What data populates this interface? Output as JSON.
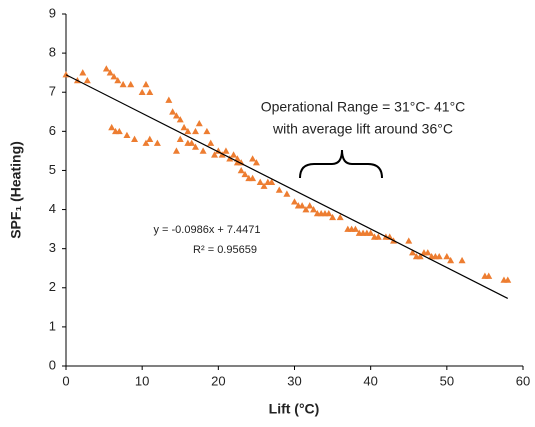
{
  "chart_data": {
    "type": "scatter",
    "x_label": "Lift (°C)",
    "y_label": "SPF₁ (Heating)",
    "annotations": [
      "Operational Range = 31°C- 41°C",
      "with average lift around 36°C"
    ],
    "equation": "y = -0.0986x + 7.4471",
    "r_squared": "R² = 0.95659",
    "color": "#ED7D31",
    "x": [
      0,
      1.5,
      2.2,
      2.8,
      5.3,
      5.8,
      6.3,
      6.8,
      7.5,
      8.5,
      10,
      10.5,
      11,
      13.5,
      14,
      14.5,
      15,
      15.5,
      16,
      17,
      17.5,
      18.5,
      19,
      20,
      21,
      22,
      22.5,
      23,
      24.5,
      25,
      6,
      6.5,
      7,
      8,
      9,
      10.5,
      11,
      12,
      14.5,
      15,
      16,
      16.5,
      17,
      18,
      19.5,
      20.5,
      21.5,
      22.5,
      23,
      23.5,
      24,
      24.5,
      25.5,
      26,
      26.5,
      27,
      28,
      29,
      30,
      30.5,
      31,
      31.5,
      32,
      32.5,
      33,
      33.5,
      34,
      34.5,
      35,
      36,
      37,
      37.5,
      38,
      38.5,
      39,
      39.5,
      40,
      40.5,
      41,
      42,
      42.5,
      43,
      45,
      45.5,
      46,
      46.5,
      47,
      47.5,
      48,
      48.5,
      49,
      50,
      50.5,
      52,
      55,
      55.5,
      57.5,
      58
    ],
    "values": [
      7.45,
      7.3,
      7.5,
      7.3,
      7.6,
      7.5,
      7.4,
      7.3,
      7.2,
      7.2,
      7.0,
      7.2,
      7.0,
      6.8,
      6.5,
      6.4,
      6.3,
      6.1,
      6.0,
      6.0,
      6.2,
      6.0,
      5.7,
      5.5,
      5.5,
      5.4,
      5.3,
      5.2,
      5.3,
      5.2,
      6.1,
      6.0,
      6.0,
      5.9,
      5.8,
      5.7,
      5.8,
      5.7,
      5.5,
      5.8,
      5.7,
      5.7,
      5.6,
      5.5,
      5.4,
      5.4,
      5.3,
      5.2,
      5.0,
      4.9,
      4.8,
      4.8,
      4.7,
      4.6,
      4.7,
      4.7,
      4.5,
      4.4,
      4.2,
      4.1,
      4.1,
      4.0,
      4.1,
      4.0,
      3.9,
      3.9,
      3.9,
      3.9,
      3.8,
      3.8,
      3.5,
      3.5,
      3.5,
      3.4,
      3.4,
      3.4,
      3.4,
      3.3,
      3.3,
      3.3,
      3.3,
      3.2,
      3.2,
      2.9,
      2.8,
      2.8,
      2.9,
      2.9,
      2.8,
      2.8,
      2.8,
      2.8,
      2.7,
      2.7,
      2.3,
      2.3,
      2.2,
      2.2
    ],
    "trendline": {
      "x": [
        0,
        58
      ],
      "y": [
        7.4471,
        1.7283
      ]
    },
    "xlim": [
      0,
      60
    ],
    "xticks": [
      0,
      10,
      20,
      30,
      40,
      50,
      60
    ],
    "ylim": [
      0,
      9
    ],
    "yticks": [
      0,
      1,
      2,
      3,
      4,
      5,
      6,
      7,
      8,
      9
    ],
    "grid": false
  }
}
